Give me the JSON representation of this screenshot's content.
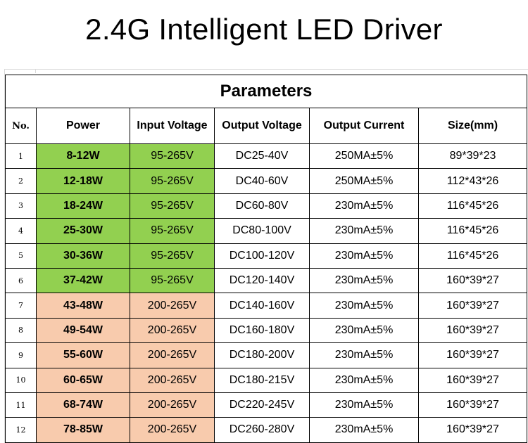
{
  "title": "2.4G Intelligent LED Driver",
  "table": {
    "caption": "Parameters",
    "headers": [
      "No.",
      "Power",
      "Input Voltage",
      "Output Voltage",
      "Output Current",
      "Size(mm)"
    ],
    "colors": {
      "low_voltage_fill": "#92d050",
      "high_voltage_fill": "#f8cbad"
    },
    "rows": [
      {
        "no": "1",
        "power": "8-12W",
        "input": "95-265V",
        "output_voltage": "DC25-40V",
        "output_current": "250MA±5%",
        "size": "89*39*23",
        "group": "low"
      },
      {
        "no": "2",
        "power": "12-18W",
        "input": "95-265V",
        "output_voltage": "DC40-60V",
        "output_current": "250MA±5%",
        "size": "112*43*26",
        "group": "low"
      },
      {
        "no": "3",
        "power": "18-24W",
        "input": "95-265V",
        "output_voltage": "DC60-80V",
        "output_current": "230mA±5%",
        "size": "116*45*26",
        "group": "low"
      },
      {
        "no": "4",
        "power": "25-30W",
        "input": "95-265V",
        "output_voltage": "DC80-100V",
        "output_current": "230mA±5%",
        "size": "116*45*26",
        "group": "low"
      },
      {
        "no": "5",
        "power": "30-36W",
        "input": "95-265V",
        "output_voltage": "DC100-120V",
        "output_current": "230mA±5%",
        "size": "116*45*26",
        "group": "low"
      },
      {
        "no": "6",
        "power": "37-42W",
        "input": "95-265V",
        "output_voltage": "DC120-140V",
        "output_current": "230mA±5%",
        "size": "160*39*27",
        "group": "low"
      },
      {
        "no": "7",
        "power": "43-48W",
        "input": "200-265V",
        "output_voltage": "DC140-160V",
        "output_current": "230mA±5%",
        "size": "160*39*27",
        "group": "high"
      },
      {
        "no": "8",
        "power": "49-54W",
        "input": "200-265V",
        "output_voltage": "DC160-180V",
        "output_current": "230mA±5%",
        "size": "160*39*27",
        "group": "high"
      },
      {
        "no": "9",
        "power": "55-60W",
        "input": "200-265V",
        "output_voltage": "DC180-200V",
        "output_current": "230mA±5%",
        "size": "160*39*27",
        "group": "high"
      },
      {
        "no": "10",
        "power": "60-65W",
        "input": "200-265V",
        "output_voltage": "DC180-215V",
        "output_current": "230mA±5%",
        "size": "160*39*27",
        "group": "high"
      },
      {
        "no": "11",
        "power": "68-74W",
        "input": "200-265V",
        "output_voltage": "DC220-245V",
        "output_current": "230mA±5%",
        "size": "160*39*27",
        "group": "high"
      },
      {
        "no": "12",
        "power": "78-85W",
        "input": "200-265V",
        "output_voltage": "DC260-280V",
        "output_current": "230mA±5%",
        "size": "160*39*27",
        "group": "high"
      }
    ]
  }
}
